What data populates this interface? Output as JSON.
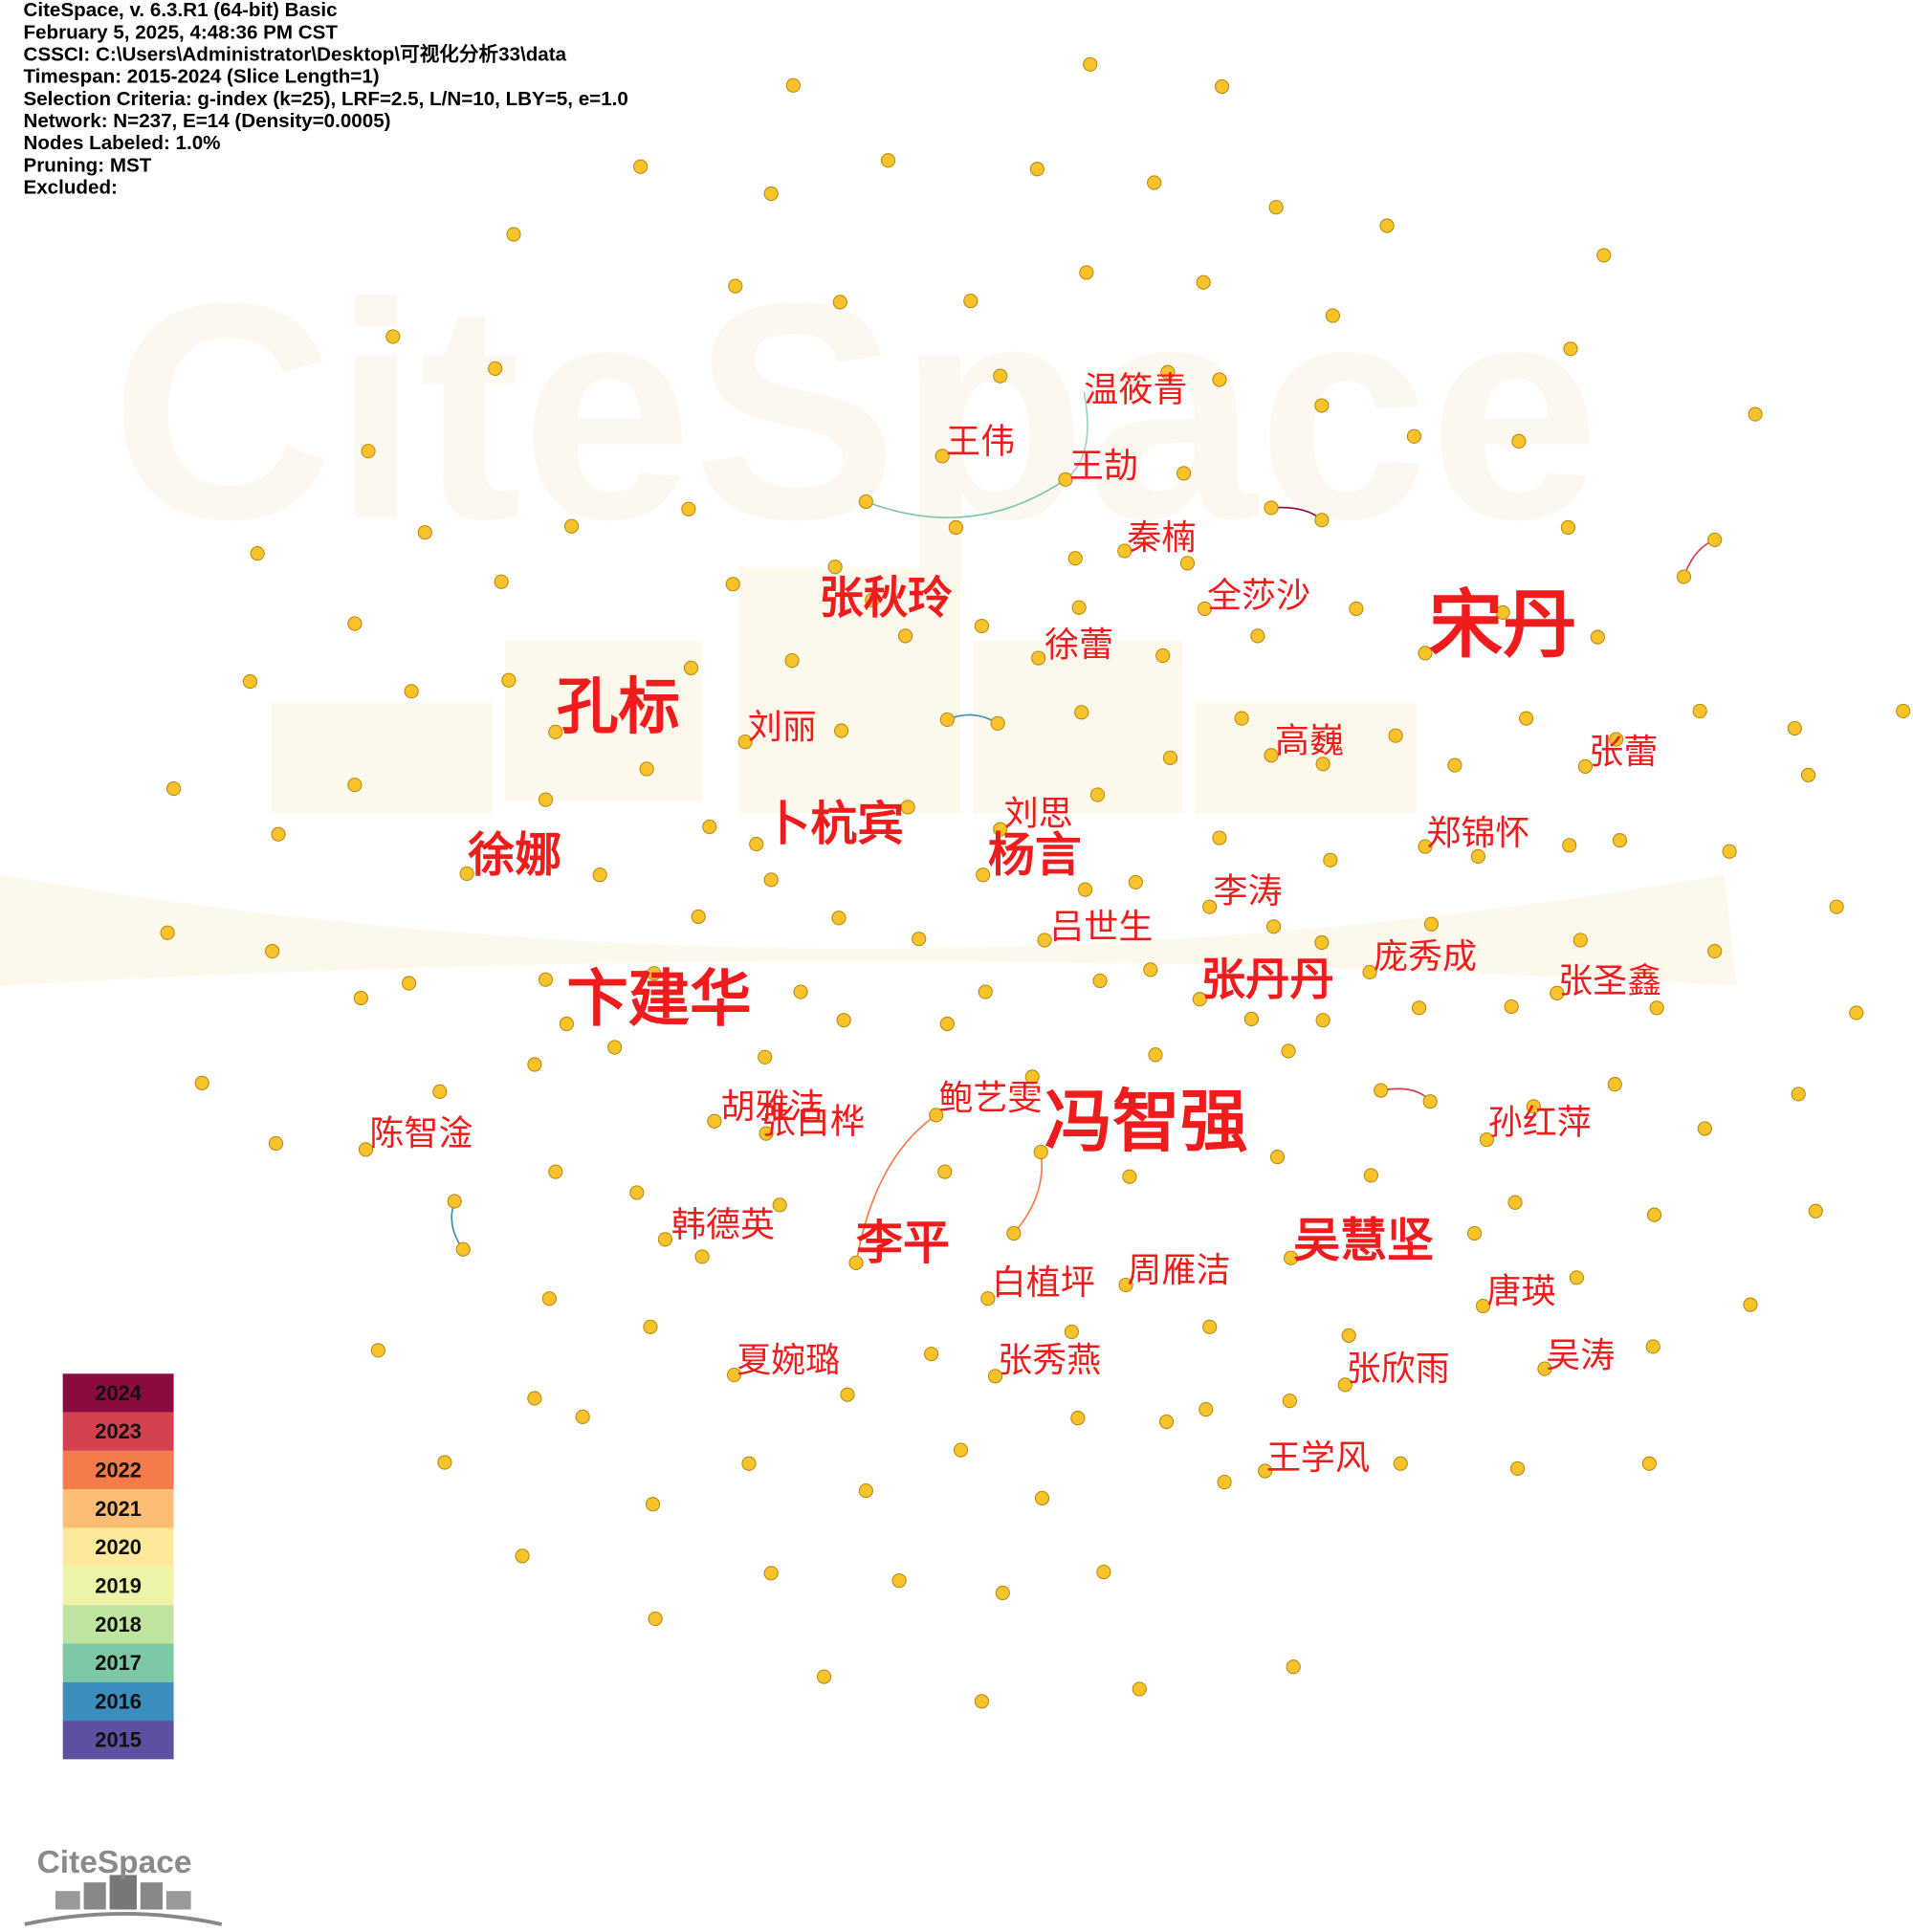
{
  "header": {
    "lines": [
      "CiteSpace, v. 6.3.R1 (64-bit) Basic",
      "February 5, 2025, 4:48:36 PM CST",
      "CSSCI: C:\\Users\\Administrator\\Desktop\\可视化分析33\\data",
      "Timespan: 2015-2024 (Slice Length=1)",
      "Selection Criteria: g-index (k=25), LRF=2.5, L/N=10, LBY=5, e=1.0",
      "Network: N=237, E=14 (Density=0.0005)",
      "Nodes Labeled: 1.0%",
      "Pruning: MST",
      "Excluded:"
    ]
  },
  "watermark": "CiteSpace",
  "logo": "CiteSpace",
  "nodes": [
    {
      "label": "温筱青"
    },
    {
      "label": "王伟"
    },
    {
      "label": "王劼"
    },
    {
      "label": "秦楠"
    },
    {
      "label": "张秋玲"
    },
    {
      "label": "全莎沙"
    },
    {
      "label": "宋丹"
    },
    {
      "label": "徐蕾"
    },
    {
      "label": "孔标"
    },
    {
      "label": "刘丽"
    },
    {
      "label": "高巍"
    },
    {
      "label": "张蕾"
    },
    {
      "label": "卜杭宾"
    },
    {
      "label": "刘思"
    },
    {
      "label": "杨言"
    },
    {
      "label": "郑锦怀"
    },
    {
      "label": "徐娜"
    },
    {
      "label": "李涛"
    },
    {
      "label": "吕世生"
    },
    {
      "label": "庞秀成"
    },
    {
      "label": "张丹丹"
    },
    {
      "label": "张圣鑫"
    },
    {
      "label": "卞建华"
    },
    {
      "label": "鲍艺雯"
    },
    {
      "label": "冯智强"
    },
    {
      "label": "胡雅洁"
    },
    {
      "label": "张白桦"
    },
    {
      "label": "孙红萍"
    },
    {
      "label": "陈智淦"
    },
    {
      "label": "韩德英"
    },
    {
      "label": "吴慧坚"
    },
    {
      "label": "李平"
    },
    {
      "label": "周雁洁"
    },
    {
      "label": "白植坪"
    },
    {
      "label": "唐瑛"
    },
    {
      "label": "夏婉璐"
    },
    {
      "label": "张秀燕"
    },
    {
      "label": "吴涛"
    },
    {
      "label": "张欣雨"
    },
    {
      "label": "王学风"
    }
  ],
  "legend": {
    "items": [
      {
        "label": "2024",
        "color": "#8b0a3f"
      },
      {
        "label": "2023",
        "color": "#d5404e"
      },
      {
        "label": "2022",
        "color": "#f47c4a"
      },
      {
        "label": "2021",
        "color": "#fdbd74"
      },
      {
        "label": "2020",
        "color": "#fde99a"
      },
      {
        "label": "2019",
        "color": "#eef4a7"
      },
      {
        "label": "2018",
        "color": "#bfe4a0"
      },
      {
        "label": "2017",
        "color": "#7cc8a4"
      },
      {
        "label": "2016",
        "color": "#3a8dbd"
      },
      {
        "label": "2015",
        "color": "#5e4fa2"
      }
    ]
  }
}
